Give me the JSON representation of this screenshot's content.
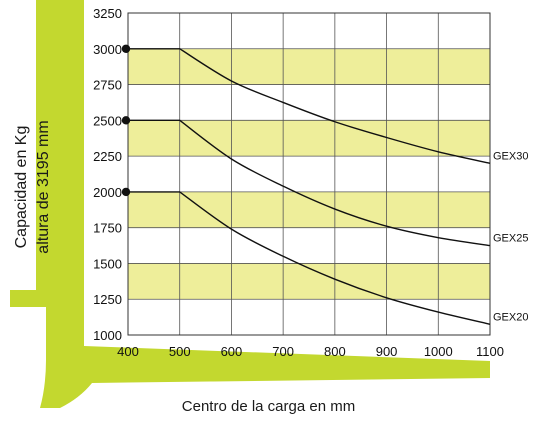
{
  "chart_data": {
    "type": "line",
    "xlabel": "Centro de la carga en mm",
    "ylabel_lines": [
      "Capacidad en Kg",
      "altura de 3195 mm"
    ],
    "x_ticks": [
      400,
      500,
      600,
      700,
      800,
      900,
      1000,
      1100
    ],
    "y_ticks": [
      1000,
      1250,
      1500,
      1750,
      2000,
      2250,
      2500,
      2750,
      3000,
      3250
    ],
    "xlim": [
      400,
      1100
    ],
    "ylim": [
      1000,
      3250
    ],
    "grid": true,
    "band_ranges": [
      [
        1250,
        1500
      ],
      [
        1750,
        2000
      ],
      [
        2250,
        2500
      ],
      [
        2750,
        3000
      ]
    ],
    "colors": {
      "band": "#eeee9a",
      "fork": "#c3d82f",
      "line": "#111111",
      "grid": "#555555"
    },
    "series": [
      {
        "name": "GEX30",
        "x": [
          400,
          500,
          600,
          700,
          800,
          900,
          1000,
          1100
        ],
        "y": [
          3000,
          3000,
          2775,
          2625,
          2490,
          2380,
          2280,
          2200
        ]
      },
      {
        "name": "GEX25",
        "x": [
          400,
          500,
          600,
          700,
          800,
          900,
          1000,
          1100
        ],
        "y": [
          2500,
          2500,
          2230,
          2040,
          1880,
          1760,
          1680,
          1625
        ]
      },
      {
        "name": "GEX20",
        "x": [
          400,
          500,
          600,
          700,
          800,
          900,
          1000,
          1100
        ],
        "y": [
          2000,
          2000,
          1740,
          1550,
          1390,
          1260,
          1160,
          1075
        ]
      }
    ]
  }
}
